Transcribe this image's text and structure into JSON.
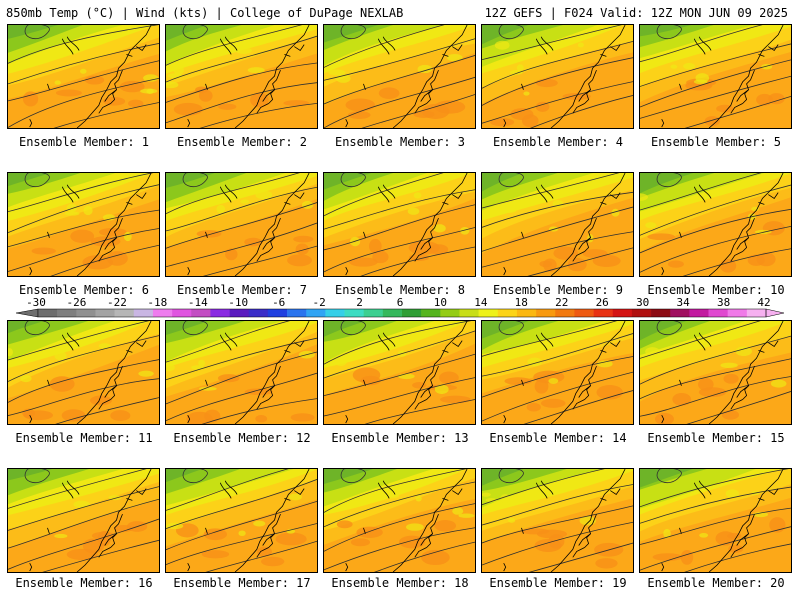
{
  "header": {
    "left": "850mb Temp (°C) | Wind (kts) | College of DuPage NEXLAB",
    "right": "12Z GEFS | F024 Valid: 12Z MON JUN 09 2025"
  },
  "panels": [
    {
      "caption": "Ensemble Member: 1"
    },
    {
      "caption": "Ensemble Member: 2"
    },
    {
      "caption": "Ensemble Member: 3"
    },
    {
      "caption": "Ensemble Member: 4"
    },
    {
      "caption": "Ensemble Member: 5"
    },
    {
      "caption": "Ensemble Member: 6"
    },
    {
      "caption": "Ensemble Member: 7"
    },
    {
      "caption": "Ensemble Member: 8"
    },
    {
      "caption": "Ensemble Member: 9"
    },
    {
      "caption": "Ensemble Member: 10"
    },
    {
      "caption": "Ensemble Member: 11"
    },
    {
      "caption": "Ensemble Member: 12"
    },
    {
      "caption": "Ensemble Member: 13"
    },
    {
      "caption": "Ensemble Member: 14"
    },
    {
      "caption": "Ensemble Member: 15"
    },
    {
      "caption": "Ensemble Member: 16"
    },
    {
      "caption": "Ensemble Member: 17"
    },
    {
      "caption": "Ensemble Member: 18"
    },
    {
      "caption": "Ensemble Member: 19"
    },
    {
      "caption": "Ensemble Member: 20"
    }
  ],
  "colorbar": {
    "labels": [
      "-30",
      "-26",
      "-22",
      "-18",
      "-14",
      "-10",
      "-6",
      "-2",
      "2",
      "6",
      "10",
      "14",
      "18",
      "22",
      "26",
      "30",
      "34",
      "38",
      "42"
    ],
    "colors": [
      "#6e6e6e",
      "#7f7f7f",
      "#909090",
      "#a3a3a3",
      "#b6b6b6",
      "#c9b6e3",
      "#ee7cee",
      "#e055e0",
      "#c34ec3",
      "#8a2be2",
      "#5a1bbf",
      "#3a2dc8",
      "#1f3fe0",
      "#2a74ee",
      "#30a4f4",
      "#35cfe8",
      "#3cdcc2",
      "#3ccf90",
      "#35b85c",
      "#2f9e35",
      "#55b41e",
      "#94cc14",
      "#c8de18",
      "#eef21a",
      "#fcd418",
      "#fbb812",
      "#f89a10",
      "#f27a10",
      "#ee5a12",
      "#e83214",
      "#d41414",
      "#b01010",
      "#8c0c14",
      "#a01060",
      "#c21aa0",
      "#e048d0",
      "#f07ae8",
      "#f6b0f0"
    ]
  },
  "map_colors": {
    "green_dark": "#6eb428",
    "green": "#8cc81c",
    "yellow_green": "#c8e014",
    "yellow": "#f0e814",
    "gold": "#fcd218",
    "orange_light": "#fcbc18",
    "orange": "#fca818",
    "orange_dark": "#f89018",
    "contour": "#303030",
    "coast": "#000000"
  }
}
